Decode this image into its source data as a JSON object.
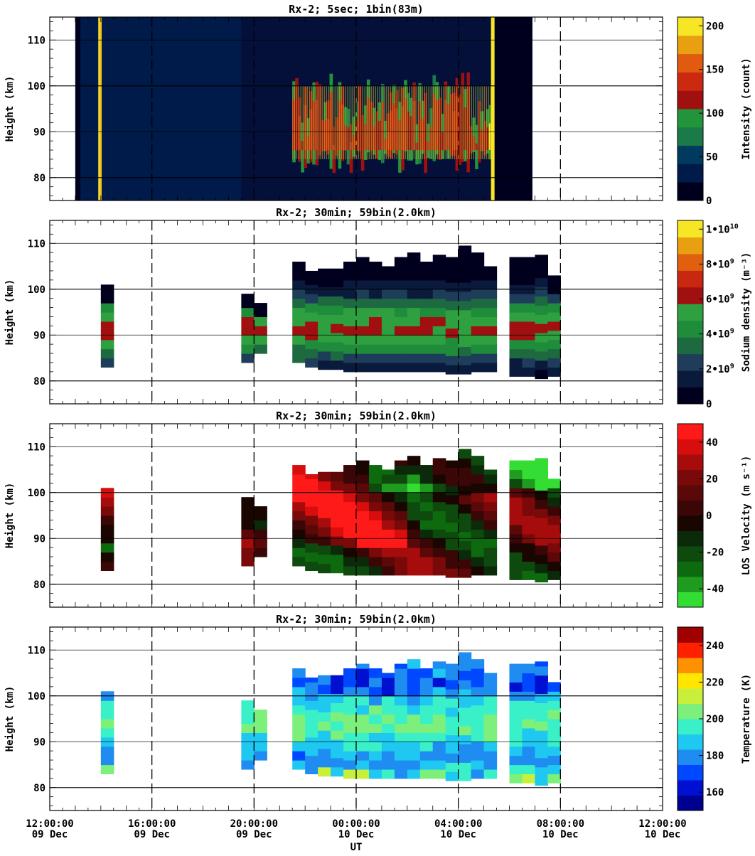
{
  "figure": {
    "xlabel": "UT",
    "x_ticks": [
      {
        "time": "12:00:00",
        "date": "09 Dec"
      },
      {
        "time": "16:00:00",
        "date": "09 Dec"
      },
      {
        "time": "20:00:00",
        "date": "09 Dec"
      },
      {
        "time": "00:00:00",
        "date": "10 Dec"
      },
      {
        "time": "04:00:00",
        "date": "10 Dec"
      },
      {
        "time": "08:00:00",
        "date": "10 Dec"
      },
      {
        "time": "12:00:00",
        "date": "10 Dec"
      }
    ]
  },
  "chart_data": [
    {
      "type": "heatmap",
      "title": "Rx-2;  5sec; 1bin(83m)",
      "ylabel": "Height (km)",
      "xlim_hours_ut": [
        12,
        36
      ],
      "ylim": [
        75,
        115
      ],
      "y_ticks": [
        80,
        90,
        100,
        110
      ],
      "colorbar": {
        "label": "Intensity (count)",
        "range": [
          0,
          210
        ],
        "ticks": [
          {
            "value": 0,
            "label": "0"
          },
          {
            "value": 50,
            "label": "50"
          },
          {
            "value": 100,
            "label": "100"
          },
          {
            "value": 150,
            "label": "150"
          },
          {
            "value": 200,
            "label": "200"
          }
        ],
        "colors": [
          "#00001e",
          "#001a4a",
          "#003a5e",
          "#1a7a48",
          "#22953a",
          "#a01010",
          "#cc2a10",
          "#e05a10",
          "#e8a010",
          "#f6e626"
        ]
      },
      "observation": {
        "start_hour": 13.0,
        "end_hour": 30.9,
        "fill": "#04103a"
      },
      "features": [
        {
          "from": 13.0,
          "to": 13.2,
          "value": 5
        },
        {
          "from": 13.2,
          "to": 13.9,
          "value": 25
        },
        {
          "from": 13.9,
          "to": 14.0,
          "value": 200
        },
        {
          "from": 14.0,
          "to": 19.5,
          "value": 40
        },
        {
          "from": 21.5,
          "to": 28.0,
          "value": 120
        },
        {
          "from": 28.0,
          "to": 29.2,
          "value": 110
        },
        {
          "from": 29.2,
          "to": 29.4,
          "value": 200
        },
        {
          "from": 29.4,
          "to": 30.9,
          "value": 5
        }
      ]
    },
    {
      "type": "heatmap",
      "title": "Rx-2; 30min; 59bin(2.0km)",
      "ylabel": "Height (km)",
      "xlim_hours_ut": [
        12,
        36
      ],
      "ylim": [
        75,
        115
      ],
      "y_ticks": [
        80,
        90,
        100,
        110
      ],
      "colorbar": {
        "label": "Sodium density (m⁻³)",
        "range": [
          0,
          10500000000.0
        ],
        "ticks": [
          {
            "value": 0,
            "label": "0"
          },
          {
            "value": 2000000000.0,
            "label": "2•109",
            "base": "2•10",
            "exp": "9"
          },
          {
            "value": 4000000000.0,
            "label": "4•109",
            "base": "4•10",
            "exp": "9"
          },
          {
            "value": 6000000000.0,
            "label": "6•109",
            "base": "6•10",
            "exp": "9"
          },
          {
            "value": 8000000000.0,
            "label": "8•109",
            "base": "8•10",
            "exp": "9"
          },
          {
            "value": 10000000000.0,
            "label": "1•1010",
            "base": "1•10",
            "exp": "10"
          }
        ],
        "colors": [
          "#00001e",
          "#0a1a3c",
          "#1e3d5a",
          "#1e6a40",
          "#1e8c3a",
          "#2ea040",
          "#a01010",
          "#c82810",
          "#e06010",
          "#e8a010",
          "#f6e626"
        ]
      },
      "columns": [
        {
          "x": 14.0,
          "bottom": 83,
          "top": 101
        },
        {
          "x": 19.5,
          "bottom": 84,
          "top": 99
        },
        {
          "x": 20.0,
          "bottom": 86,
          "top": 97
        },
        {
          "x": 21.5,
          "bottom": 84,
          "top": 106
        },
        {
          "x": 22.0,
          "bottom": 83,
          "top": 104
        },
        {
          "x": 22.5,
          "bottom": 82.5,
          "top": 105
        },
        {
          "x": 23.0,
          "bottom": 82.5,
          "top": 105
        },
        {
          "x": 23.5,
          "bottom": 82,
          "top": 106
        },
        {
          "x": 24.0,
          "bottom": 82,
          "top": 107
        },
        {
          "x": 24.5,
          "bottom": 82,
          "top": 106
        },
        {
          "x": 25.0,
          "bottom": 82,
          "top": 105
        },
        {
          "x": 25.5,
          "bottom": 82,
          "top": 107
        },
        {
          "x": 26.0,
          "bottom": 82,
          "top": 108.5
        },
        {
          "x": 26.5,
          "bottom": 82,
          "top": 106
        },
        {
          "x": 27.0,
          "bottom": 82,
          "top": 107.5
        },
        {
          "x": 27.5,
          "bottom": 81.5,
          "top": 107
        },
        {
          "x": 28.0,
          "bottom": 81.5,
          "top": 110
        },
        {
          "x": 28.5,
          "bottom": 82,
          "top": 108.5
        },
        {
          "x": 29.0,
          "bottom": 82,
          "top": 105
        },
        {
          "x": 30.0,
          "bottom": 81,
          "top": 107
        },
        {
          "x": 30.5,
          "bottom": 81,
          "top": 107
        },
        {
          "x": 31.0,
          "bottom": 80.5,
          "top": 107.5
        },
        {
          "x": 31.5,
          "bottom": 81,
          "top": 103
        }
      ]
    },
    {
      "type": "heatmap",
      "title": "Rx-2; 30min; 59bin(2.0km)",
      "ylabel": "Height (km)",
      "xlim_hours_ut": [
        12,
        36
      ],
      "ylim": [
        75,
        115
      ],
      "y_ticks": [
        80,
        90,
        100,
        110
      ],
      "colorbar": {
        "label": "LOS Velocity (m s⁻¹)",
        "range": [
          -50,
          50
        ],
        "ticks": [
          {
            "value": -40,
            "label": "-40"
          },
          {
            "value": -20,
            "label": "-20"
          },
          {
            "value": 0,
            "label": "0"
          },
          {
            "value": 20,
            "label": "20"
          },
          {
            "value": 40,
            "label": "40"
          }
        ],
        "colors": [
          "#33dd33",
          "#1f9c1f",
          "#0e6a0e",
          "#0e4a0e",
          "#0a2a0a",
          "#1a0600",
          "#3a0606",
          "#5a0808",
          "#7a0a0a",
          "#a60c0c",
          "#d80e0e",
          "#ff1a1a"
        ]
      },
      "columns_ref": "same as sodium density panel"
    },
    {
      "type": "heatmap",
      "title": "Rx-2; 30min; 59bin(2.0km)",
      "ylabel": "Height (km)",
      "xlim_hours_ut": [
        12,
        36
      ],
      "ylim": [
        75,
        115
      ],
      "y_ticks": [
        80,
        90,
        100,
        110
      ],
      "colorbar": {
        "label": "Temperature (K)",
        "range": [
          150,
          250
        ],
        "ticks": [
          {
            "value": 160,
            "label": "160"
          },
          {
            "value": 180,
            "label": "180"
          },
          {
            "value": 200,
            "label": "200"
          },
          {
            "value": 220,
            "label": "220"
          },
          {
            "value": 240,
            "label": "240"
          }
        ],
        "colors": [
          "#000090",
          "#0010d0",
          "#0048ff",
          "#1e8cf0",
          "#1ec8f0",
          "#3af0c8",
          "#7cf07a",
          "#c8f03a",
          "#ffe600",
          "#ff9000",
          "#ff2000",
          "#a00000"
        ]
      },
      "columns_ref": "same as sodium density panel"
    }
  ]
}
